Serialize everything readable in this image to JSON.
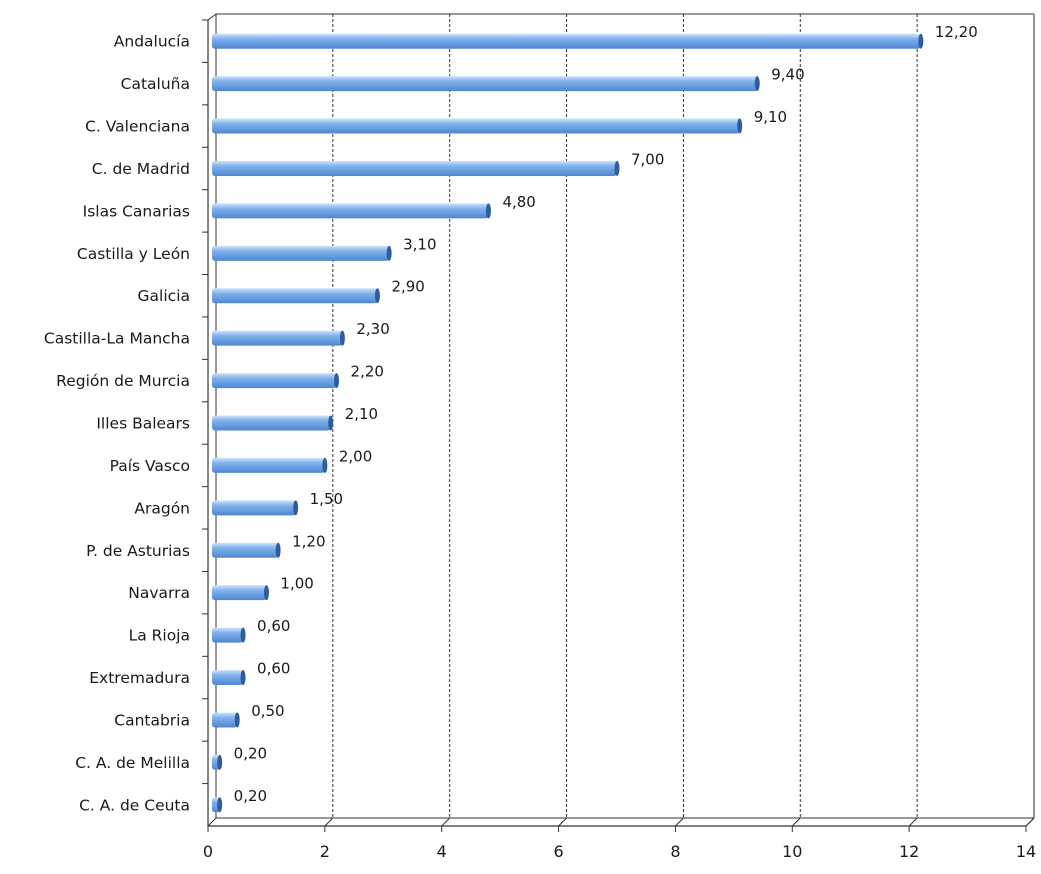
{
  "chart_data": {
    "type": "bar",
    "orientation": "horizontal",
    "categories": [
      "Andalucía",
      "Cataluña",
      "C. Valenciana",
      "C. de Madrid",
      "Islas Canarias",
      "Castilla y León",
      "Galicia",
      "Castilla-La Mancha",
      "Región de Murcia",
      "Illes Balears",
      "País Vasco",
      "Aragón",
      "P. de Asturias",
      "Navarra",
      "La Rioja",
      "Extremadura",
      "Cantabria",
      "C. A. de Melilla",
      "C. A. de Ceuta"
    ],
    "values": [
      12.2,
      9.4,
      9.1,
      7.0,
      4.8,
      3.1,
      2.9,
      2.3,
      2.2,
      2.1,
      2.0,
      1.5,
      1.2,
      1.0,
      0.6,
      0.6,
      0.5,
      0.2,
      0.2
    ],
    "value_labels": [
      "12,20",
      "9,40",
      "9,10",
      "7,00",
      "4,80",
      "3,10",
      "2,90",
      "2,30",
      "2,20",
      "2,10",
      "2,00",
      "1,50",
      "1,20",
      "1,00",
      "0,60",
      "0,60",
      "0,50",
      "0,20",
      "0,20"
    ],
    "xticks": [
      0,
      2,
      4,
      6,
      8,
      10,
      12,
      14
    ],
    "xlim": [
      0,
      14
    ],
    "title": "",
    "xlabel": "",
    "ylabel": "",
    "grid": "vertical dashed",
    "legend": "none",
    "bar_color": "#7fb1ec",
    "bar_highlight": "#cfe3fa",
    "bar_shadow": "#4f86cf",
    "bar_end_color": "#2f5d99"
  }
}
